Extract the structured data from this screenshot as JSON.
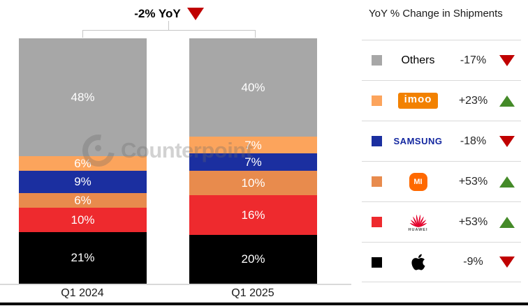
{
  "title": {
    "label": "-2% YoY",
    "direction": "down"
  },
  "watermark": {
    "text": "Counterpoint"
  },
  "chart_data": {
    "type": "bar",
    "stacked": true,
    "unit": "%",
    "title": "-2% YoY",
    "categories": [
      "Q1 2024",
      "Q1 2025"
    ],
    "stack_order": "top-to-bottom",
    "stack": [
      {
        "name": "Others",
        "color": "#A7A7A7",
        "values": [
          48,
          40
        ]
      },
      {
        "name": "imoo",
        "color": "#FCA45C",
        "values": [
          6,
          7
        ]
      },
      {
        "name": "Samsung",
        "color": "#1B2FA0",
        "values": [
          9,
          7
        ]
      },
      {
        "name": "Xiaomi",
        "color": "#E88B4D",
        "values": [
          6,
          10
        ]
      },
      {
        "name": "Huawei",
        "color": "#EE2A2E",
        "values": [
          10,
          16
        ]
      },
      {
        "name": "Apple",
        "color": "#000000",
        "values": [
          21,
          20
        ]
      }
    ],
    "ylim": [
      0,
      100
    ],
    "legend_position": "right",
    "grid": false
  },
  "legend": {
    "header": "YoY % Change in Shipments",
    "rows": [
      {
        "brand": "Others",
        "change": "-17%",
        "direction": "down",
        "swatch": "#A7A7A7"
      },
      {
        "brand": "imoo",
        "change": "+23%",
        "direction": "up",
        "swatch": "#FCA45C",
        "logo_text": "imoo"
      },
      {
        "brand": "Samsung",
        "change": "-18%",
        "direction": "down",
        "swatch": "#1B2FA0",
        "logo_text": "SAMSUNG"
      },
      {
        "brand": "Xiaomi",
        "change": "+53%",
        "direction": "up",
        "swatch": "#E88B4D",
        "logo_text": "MI"
      },
      {
        "brand": "Huawei",
        "change": "+53%",
        "direction": "up",
        "swatch": "#EE2A2E",
        "logo_text": "HUAWEI"
      },
      {
        "brand": "Apple",
        "change": "-9%",
        "direction": "down",
        "swatch": "#000000"
      }
    ]
  },
  "colors": {
    "up": "#448A28",
    "down": "#C00000",
    "imoo_logo": "#F28100",
    "mi_logo": "#FF6900",
    "samsung_text": "#1428A0",
    "huawei_red": "#E4002B",
    "separator": "#D9D9D9"
  }
}
